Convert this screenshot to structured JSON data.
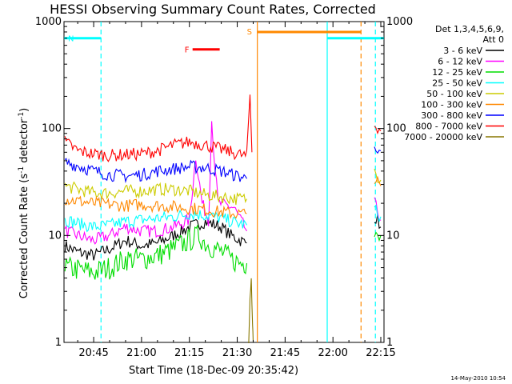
{
  "chart_data": {
    "type": "line",
    "title": "HESSI Observing Summary Count Rates, Corrected",
    "xlabel": "Start Time (18-Dec-09 20:35:42)",
    "ylabel_parts": {
      "a": "Corrected Count Rate (s",
      "sup1": "-1",
      "b": " detector",
      "sup2": "-1",
      "c": ")"
    },
    "footer": "14-May-2010 10:54",
    "x_unit": "minutes after 20:00 UT",
    "xlim": [
      35.7,
      136
    ],
    "ylim": [
      1,
      1000
    ],
    "yscale": "log",
    "x_ticks": [
      {
        "value": 45,
        "label": "20:45"
      },
      {
        "value": 60,
        "label": "21:00"
      },
      {
        "value": 75,
        "label": "21:15"
      },
      {
        "value": 90,
        "label": "21:30"
      },
      {
        "value": 105,
        "label": "21:45"
      },
      {
        "value": 120,
        "label": "22:00"
      },
      {
        "value": 135,
        "label": "22:15"
      }
    ],
    "y_ticks": [
      {
        "value": 1,
        "label": "1"
      },
      {
        "value": 10,
        "label": "10"
      },
      {
        "value": 100,
        "label": "100"
      },
      {
        "value": 1000,
        "label": "1000"
      }
    ],
    "legend": {
      "placement": "right",
      "header1": "Det 1,3,4,5,6,9,",
      "header2": "Att 0"
    },
    "series": [
      {
        "name": "3 - 6 keV",
        "color": "#000000",
        "seg1": [
          [
            36,
            8
          ],
          [
            40,
            7
          ],
          [
            45,
            6.5
          ],
          [
            50,
            7.5
          ],
          [
            55,
            9
          ],
          [
            60,
            8
          ],
          [
            65,
            8.5
          ],
          [
            70,
            10
          ],
          [
            75,
            12
          ],
          [
            80,
            13.5
          ],
          [
            85,
            12
          ],
          [
            88,
            10
          ],
          [
            91,
            9
          ],
          [
            93,
            8.5
          ]
        ],
        "seg2": [
          [
            133,
            15
          ],
          [
            134,
            14
          ],
          [
            135,
            12
          ]
        ]
      },
      {
        "name": "6 - 12 keV",
        "color": "#ff00ff",
        "seg1": [
          [
            36,
            11
          ],
          [
            40,
            10
          ],
          [
            45,
            9
          ],
          [
            50,
            10
          ],
          [
            55,
            12
          ],
          [
            60,
            11
          ],
          [
            65,
            11
          ],
          [
            70,
            12
          ],
          [
            75,
            14
          ],
          [
            77,
            55
          ],
          [
            79,
            20
          ],
          [
            81,
            14
          ],
          [
            82,
            120
          ],
          [
            83,
            45
          ],
          [
            84,
            20
          ],
          [
            87,
            19
          ],
          [
            89,
            18
          ],
          [
            91,
            14
          ],
          [
            93,
            11
          ]
        ],
        "seg2": [
          [
            133,
            20
          ],
          [
            134,
            17
          ],
          [
            135,
            14
          ]
        ]
      },
      {
        "name": "12 - 25 keV",
        "color": "#00dd00",
        "seg1": [
          [
            36,
            5
          ],
          [
            40,
            4.8
          ],
          [
            45,
            4.5
          ],
          [
            50,
            5
          ],
          [
            55,
            6
          ],
          [
            60,
            6
          ],
          [
            65,
            6.5
          ],
          [
            70,
            7.5
          ],
          [
            75,
            9
          ],
          [
            78,
            10
          ],
          [
            80,
            8.5
          ],
          [
            85,
            7
          ],
          [
            88,
            6
          ],
          [
            91,
            5.5
          ],
          [
            93,
            5.5
          ]
        ],
        "seg2": [
          [
            133,
            12
          ],
          [
            134,
            11
          ],
          [
            135,
            10
          ]
        ]
      },
      {
        "name": "25 - 50 keV",
        "color": "#00ffff",
        "seg1": [
          [
            36,
            14
          ],
          [
            40,
            13
          ],
          [
            45,
            12
          ],
          [
            50,
            12.5
          ],
          [
            55,
            13.5
          ],
          [
            60,
            14
          ],
          [
            65,
            14.5
          ],
          [
            70,
            15
          ],
          [
            75,
            16
          ],
          [
            80,
            15.5
          ],
          [
            85,
            14.5
          ],
          [
            90,
            13
          ],
          [
            93,
            12.5
          ]
        ],
        "seg2": [
          [
            133,
            18
          ],
          [
            134,
            16
          ],
          [
            135,
            15
          ]
        ]
      },
      {
        "name": "50 - 100 keV",
        "color": "#cccc00",
        "seg1": [
          [
            36,
            29
          ],
          [
            40,
            27
          ],
          [
            45,
            25
          ],
          [
            50,
            25
          ],
          [
            55,
            26
          ],
          [
            60,
            26
          ],
          [
            65,
            27
          ],
          [
            70,
            27
          ],
          [
            75,
            26
          ],
          [
            80,
            24
          ],
          [
            85,
            23
          ],
          [
            90,
            22
          ],
          [
            93,
            22
          ]
        ],
        "seg2": [
          [
            133,
            40
          ],
          [
            134,
            36
          ],
          [
            135,
            33
          ]
        ]
      },
      {
        "name": "100 - 300 keV",
        "color": "#ff8800",
        "seg1": [
          [
            36,
            22
          ],
          [
            40,
            21
          ],
          [
            45,
            20
          ],
          [
            50,
            19.5
          ],
          [
            55,
            19
          ],
          [
            60,
            19.5
          ],
          [
            65,
            19
          ],
          [
            70,
            18.5
          ],
          [
            75,
            18
          ],
          [
            80,
            17.5
          ],
          [
            85,
            16.5
          ],
          [
            90,
            16
          ],
          [
            93,
            16
          ]
        ],
        "seg2": [
          [
            133,
            35
          ],
          [
            134,
            31
          ],
          [
            135,
            29
          ]
        ]
      },
      {
        "name": "300 - 800 keV",
        "color": "#0000ff",
        "seg1": [
          [
            36,
            48
          ],
          [
            40,
            45
          ],
          [
            45,
            40
          ],
          [
            50,
            37
          ],
          [
            55,
            36
          ],
          [
            60,
            37
          ],
          [
            65,
            40
          ],
          [
            70,
            42
          ],
          [
            75,
            44
          ],
          [
            80,
            43
          ],
          [
            85,
            40
          ],
          [
            90,
            36
          ],
          [
            93,
            34
          ]
        ],
        "seg2": [
          [
            133,
            72
          ],
          [
            134,
            66
          ],
          [
            135,
            62
          ]
        ]
      },
      {
        "name": "800 - 7000 keV",
        "color": "#ff0000",
        "seg1": [
          [
            36,
            75
          ],
          [
            40,
            62
          ],
          [
            45,
            58
          ],
          [
            50,
            56
          ],
          [
            55,
            57
          ],
          [
            60,
            58
          ],
          [
            65,
            62
          ],
          [
            70,
            70
          ],
          [
            75,
            75
          ],
          [
            80,
            70
          ],
          [
            85,
            64
          ],
          [
            90,
            58
          ],
          [
            93,
            55
          ],
          [
            94,
            210
          ],
          [
            94.6,
            60
          ]
        ],
        "seg2": [
          [
            133,
            110
          ],
          [
            134,
            103
          ],
          [
            135,
            95
          ]
        ]
      },
      {
        "name": "7000 - 20000 keV",
        "color": "#887700",
        "seg1": [
          [
            93.6,
            1
          ],
          [
            94,
            2.5
          ],
          [
            94.4,
            3.8
          ],
          [
            94.8,
            1.5
          ],
          [
            95,
            1
          ]
        ],
        "seg2": []
      }
    ],
    "overlays": {
      "night_bars": [
        {
          "label": "N",
          "x1": 35.7,
          "x2": 47.3,
          "y": 700,
          "color": "#00ffff"
        },
        {
          "label": "",
          "x1": 118.2,
          "x2": 136,
          "y": 700,
          "color": "#00ffff"
        }
      ],
      "saa_bars": [
        {
          "label": "S",
          "x1": 96.3,
          "x2": 128.8,
          "y": 800,
          "color": "#ff8800"
        }
      ],
      "flare_bars": [
        {
          "label": "F",
          "x1": 76,
          "x2": 84.5,
          "y": 550,
          "color": "#ff0000"
        }
      ],
      "vlines": [
        {
          "x": 47.3,
          "color": "#00ffff",
          "dash": true
        },
        {
          "x": 118.2,
          "color": "#00ffff",
          "dash": false
        },
        {
          "x": 133.3,
          "color": "#00ffff",
          "dash": true
        },
        {
          "x": 96.3,
          "color": "#ff8800",
          "dash": false
        },
        {
          "x": 128.8,
          "color": "#ff8800",
          "dash": true
        }
      ]
    }
  }
}
